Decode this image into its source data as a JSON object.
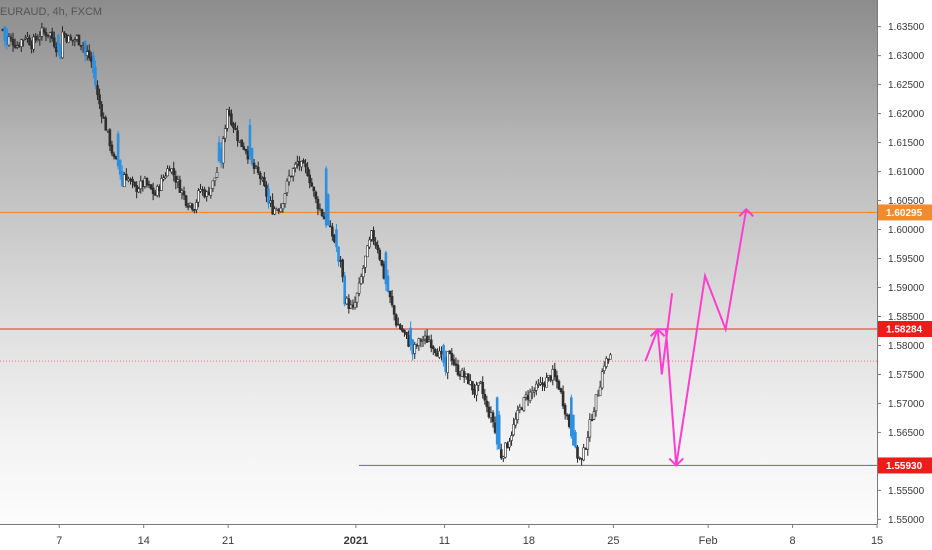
{
  "symbol_label": "EURAUD, 4h, FXCM",
  "colors": {
    "candle_body": "#2e2e2e",
    "candle_wick": "#262626",
    "drop_candle": "#2d8fe0",
    "resistance_line": "#f28a2e",
    "level_line": "#f44b4b",
    "current_price_line": "#f07070",
    "projection": "#ff3ecf",
    "badge_orange": "#f28a2e",
    "badge_red": "#ee1b1b"
  },
  "chart_data": {
    "type": "candlestick",
    "title": "",
    "y_axis_ticks": [
      "1.63500",
      "1.63000",
      "1.62500",
      "1.62000",
      "1.61500",
      "1.61000",
      "1.60500",
      "1.60000",
      "1.59500",
      "1.59000",
      "1.58500",
      "1.58000",
      "1.57500",
      "1.57000",
      "1.56500",
      "1.56000",
      "1.55500",
      "1.55000"
    ],
    "x_axis_ticks": [
      "7",
      "14",
      "21",
      "2021",
      "11",
      "18",
      "25",
      "Feb",
      "8",
      "15"
    ],
    "x_tick_index": [
      0,
      41,
      82,
      144,
      187,
      228,
      269,
      315,
      356,
      397
    ],
    "ylim": [
      1.5492,
      1.6396
    ],
    "price_levels": [
      {
        "name": "resistance",
        "value": 1.60295,
        "label": "1.60295",
        "style": "orange"
      },
      {
        "name": "resistance-2",
        "value": 1.58284,
        "label": "1.58284",
        "style": "red"
      },
      {
        "name": "support",
        "value": 1.5593,
        "label": "1.55930",
        "style": "red",
        "start_index": 163
      }
    ],
    "current_price": 1.5773,
    "close_path": [
      [
        0,
        1.6345
      ],
      [
        3,
        1.633
      ],
      [
        7,
        1.6318
      ],
      [
        11,
        1.6335
      ],
      [
        14,
        1.632
      ],
      [
        19,
        1.634
      ],
      [
        23,
        1.6338
      ],
      [
        26,
        1.6315
      ],
      [
        29,
        1.634
      ],
      [
        33,
        1.6325
      ],
      [
        36,
        1.633
      ],
      [
        39,
        1.6318
      ],
      [
        43,
        1.629
      ],
      [
        46,
        1.623
      ],
      [
        49,
        1.619
      ],
      [
        52,
        1.615
      ],
      [
        54,
        1.612
      ],
      [
        57,
        1.6105
      ],
      [
        60,
        1.6092
      ],
      [
        64,
        1.607
      ],
      [
        69,
        1.608
      ],
      [
        74,
        1.606
      ],
      [
        78,
        1.609
      ],
      [
        81,
        1.611
      ],
      [
        85,
        1.608
      ],
      [
        89,
        1.605
      ],
      [
        93,
        1.604
      ],
      [
        96,
        1.607
      ],
      [
        99,
        1.606
      ],
      [
        102,
        1.608
      ],
      [
        106,
        1.612
      ],
      [
        109,
        1.621
      ],
      [
        112,
        1.618
      ],
      [
        115,
        1.615
      ],
      [
        118,
        1.614
      ],
      [
        121,
        1.611
      ],
      [
        125,
        1.609
      ],
      [
        128,
        1.606
      ],
      [
        131,
        1.6035
      ],
      [
        135,
        1.604
      ],
      [
        139,
        1.609
      ],
      [
        143,
        1.6115
      ],
      [
        148,
        1.61
      ],
      [
        152,
        1.605
      ],
      [
        156,
        1.602
      ],
      [
        160,
        1.599
      ],
      [
        164,
        1.595
      ],
      [
        166,
        1.588
      ],
      [
        170,
        1.586
      ],
      [
        173,
        1.59
      ],
      [
        176,
        1.595
      ],
      [
        179,
        1.599
      ],
      [
        182,
        1.597
      ],
      [
        185,
        1.592
      ],
      [
        188,
        1.588
      ],
      [
        191,
        1.584
      ],
      [
        195,
        1.582
      ],
      [
        199,
        1.579
      ],
      [
        203,
        1.581
      ],
      [
        207,
        1.581
      ],
      [
        211,
        1.579
      ],
      [
        214,
        1.577
      ],
      [
        217,
        1.579
      ],
      [
        220,
        1.576
      ],
      [
        223,
        1.575
      ],
      [
        226,
        1.574
      ],
      [
        229,
        1.572
      ],
      [
        232,
        1.573
      ],
      [
        235,
        1.569
      ],
      [
        238,
        1.567
      ],
      [
        240,
        1.563
      ],
      [
        242,
        1.561
      ],
      [
        245,
        1.563
      ],
      [
        248,
        1.566
      ],
      [
        251,
        1.569
      ],
      [
        254,
        1.571
      ],
      [
        257,
        1.572
      ],
      [
        261,
        1.573
      ],
      [
        264,
        1.574
      ],
      [
        267,
        1.575
      ],
      [
        270,
        1.573
      ],
      [
        273,
        1.569
      ],
      [
        276,
        1.565
      ],
      [
        279,
        1.561
      ],
      [
        281,
        1.56
      ],
      [
        283,
        1.563
      ],
      [
        286,
        1.568
      ],
      [
        289,
        1.572
      ],
      [
        292,
        1.577
      ],
      [
        295,
        1.578
      ]
    ],
    "drop_candles": [
      [
        1,
        1.635
      ],
      [
        2,
        1.6345
      ],
      [
        27,
        1.6335
      ],
      [
        28,
        1.632
      ],
      [
        40,
        1.6325
      ],
      [
        44,
        1.63
      ],
      [
        45,
        1.628
      ],
      [
        56,
        1.6165
      ],
      [
        57,
        1.612
      ],
      [
        58,
        1.61
      ],
      [
        105,
        1.615
      ],
      [
        106,
        1.614
      ],
      [
        120,
        1.618
      ],
      [
        121,
        1.614
      ],
      [
        129,
        1.607
      ],
      [
        157,
        1.6105
      ],
      [
        158,
        1.606
      ],
      [
        162,
        1.6
      ],
      [
        163,
        1.597
      ],
      [
        166,
        1.592
      ],
      [
        186,
        1.596
      ],
      [
        187,
        1.592
      ],
      [
        198,
        1.583
      ],
      [
        199,
        1.581
      ],
      [
        214,
        1.58
      ],
      [
        215,
        1.578
      ],
      [
        240,
        1.571
      ],
      [
        241,
        1.568
      ],
      [
        276,
        1.571
      ],
      [
        277,
        1.568
      ],
      [
        278,
        1.565
      ]
    ],
    "projection_path": [
      [
        301,
        1.5773
      ],
      [
        307,
        1.5828
      ],
      [
        311,
        1.5828
      ],
      [
        316,
        1.5593
      ],
      [
        321,
        1.5708
      ],
      [
        330,
        1.592
      ],
      [
        340,
        1.5828
      ],
      [
        350,
        1.6035
      ]
    ],
    "projection_marker_1": [
      [
        307,
        1.5828
      ],
      [
        309,
        1.575
      ],
      [
        314,
        1.589
      ]
    ]
  }
}
